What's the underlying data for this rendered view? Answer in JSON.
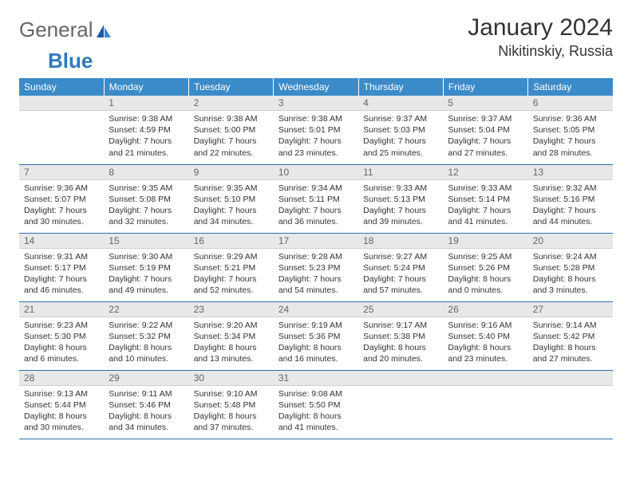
{
  "logo": {
    "part1": "General",
    "part2": "Blue"
  },
  "title": "January 2024",
  "location": "Nikitinskiy, Russia",
  "colors": {
    "header_bg": "#3b8bc9",
    "header_text": "#ffffff",
    "daynum_bg": "#e8e8e8",
    "daynum_text": "#666666",
    "row_divider": "#2f6fae",
    "logo_blue": "#2f79bd"
  },
  "weekdays": [
    "Sunday",
    "Monday",
    "Tuesday",
    "Wednesday",
    "Thursday",
    "Friday",
    "Saturday"
  ],
  "weeks": [
    [
      null,
      {
        "n": "1",
        "sr": "Sunrise: 9:38 AM",
        "ss": "Sunset: 4:59 PM",
        "d1": "Daylight: 7 hours",
        "d2": "and 21 minutes."
      },
      {
        "n": "2",
        "sr": "Sunrise: 9:38 AM",
        "ss": "Sunset: 5:00 PM",
        "d1": "Daylight: 7 hours",
        "d2": "and 22 minutes."
      },
      {
        "n": "3",
        "sr": "Sunrise: 9:38 AM",
        "ss": "Sunset: 5:01 PM",
        "d1": "Daylight: 7 hours",
        "d2": "and 23 minutes."
      },
      {
        "n": "4",
        "sr": "Sunrise: 9:37 AM",
        "ss": "Sunset: 5:03 PM",
        "d1": "Daylight: 7 hours",
        "d2": "and 25 minutes."
      },
      {
        "n": "5",
        "sr": "Sunrise: 9:37 AM",
        "ss": "Sunset: 5:04 PM",
        "d1": "Daylight: 7 hours",
        "d2": "and 27 minutes."
      },
      {
        "n": "6",
        "sr": "Sunrise: 9:36 AM",
        "ss": "Sunset: 5:05 PM",
        "d1": "Daylight: 7 hours",
        "d2": "and 28 minutes."
      }
    ],
    [
      {
        "n": "7",
        "sr": "Sunrise: 9:36 AM",
        "ss": "Sunset: 5:07 PM",
        "d1": "Daylight: 7 hours",
        "d2": "and 30 minutes."
      },
      {
        "n": "8",
        "sr": "Sunrise: 9:35 AM",
        "ss": "Sunset: 5:08 PM",
        "d1": "Daylight: 7 hours",
        "d2": "and 32 minutes."
      },
      {
        "n": "9",
        "sr": "Sunrise: 9:35 AM",
        "ss": "Sunset: 5:10 PM",
        "d1": "Daylight: 7 hours",
        "d2": "and 34 minutes."
      },
      {
        "n": "10",
        "sr": "Sunrise: 9:34 AM",
        "ss": "Sunset: 5:11 PM",
        "d1": "Daylight: 7 hours",
        "d2": "and 36 minutes."
      },
      {
        "n": "11",
        "sr": "Sunrise: 9:33 AM",
        "ss": "Sunset: 5:13 PM",
        "d1": "Daylight: 7 hours",
        "d2": "and 39 minutes."
      },
      {
        "n": "12",
        "sr": "Sunrise: 9:33 AM",
        "ss": "Sunset: 5:14 PM",
        "d1": "Daylight: 7 hours",
        "d2": "and 41 minutes."
      },
      {
        "n": "13",
        "sr": "Sunrise: 9:32 AM",
        "ss": "Sunset: 5:16 PM",
        "d1": "Daylight: 7 hours",
        "d2": "and 44 minutes."
      }
    ],
    [
      {
        "n": "14",
        "sr": "Sunrise: 9:31 AM",
        "ss": "Sunset: 5:17 PM",
        "d1": "Daylight: 7 hours",
        "d2": "and 46 minutes."
      },
      {
        "n": "15",
        "sr": "Sunrise: 9:30 AM",
        "ss": "Sunset: 5:19 PM",
        "d1": "Daylight: 7 hours",
        "d2": "and 49 minutes."
      },
      {
        "n": "16",
        "sr": "Sunrise: 9:29 AM",
        "ss": "Sunset: 5:21 PM",
        "d1": "Daylight: 7 hours",
        "d2": "and 52 minutes."
      },
      {
        "n": "17",
        "sr": "Sunrise: 9:28 AM",
        "ss": "Sunset: 5:23 PM",
        "d1": "Daylight: 7 hours",
        "d2": "and 54 minutes."
      },
      {
        "n": "18",
        "sr": "Sunrise: 9:27 AM",
        "ss": "Sunset: 5:24 PM",
        "d1": "Daylight: 7 hours",
        "d2": "and 57 minutes."
      },
      {
        "n": "19",
        "sr": "Sunrise: 9:25 AM",
        "ss": "Sunset: 5:26 PM",
        "d1": "Daylight: 8 hours",
        "d2": "and 0 minutes."
      },
      {
        "n": "20",
        "sr": "Sunrise: 9:24 AM",
        "ss": "Sunset: 5:28 PM",
        "d1": "Daylight: 8 hours",
        "d2": "and 3 minutes."
      }
    ],
    [
      {
        "n": "21",
        "sr": "Sunrise: 9:23 AM",
        "ss": "Sunset: 5:30 PM",
        "d1": "Daylight: 8 hours",
        "d2": "and 6 minutes."
      },
      {
        "n": "22",
        "sr": "Sunrise: 9:22 AM",
        "ss": "Sunset: 5:32 PM",
        "d1": "Daylight: 8 hours",
        "d2": "and 10 minutes."
      },
      {
        "n": "23",
        "sr": "Sunrise: 9:20 AM",
        "ss": "Sunset: 5:34 PM",
        "d1": "Daylight: 8 hours",
        "d2": "and 13 minutes."
      },
      {
        "n": "24",
        "sr": "Sunrise: 9:19 AM",
        "ss": "Sunset: 5:36 PM",
        "d1": "Daylight: 8 hours",
        "d2": "and 16 minutes."
      },
      {
        "n": "25",
        "sr": "Sunrise: 9:17 AM",
        "ss": "Sunset: 5:38 PM",
        "d1": "Daylight: 8 hours",
        "d2": "and 20 minutes."
      },
      {
        "n": "26",
        "sr": "Sunrise: 9:16 AM",
        "ss": "Sunset: 5:40 PM",
        "d1": "Daylight: 8 hours",
        "d2": "and 23 minutes."
      },
      {
        "n": "27",
        "sr": "Sunrise: 9:14 AM",
        "ss": "Sunset: 5:42 PM",
        "d1": "Daylight: 8 hours",
        "d2": "and 27 minutes."
      }
    ],
    [
      {
        "n": "28",
        "sr": "Sunrise: 9:13 AM",
        "ss": "Sunset: 5:44 PM",
        "d1": "Daylight: 8 hours",
        "d2": "and 30 minutes."
      },
      {
        "n": "29",
        "sr": "Sunrise: 9:11 AM",
        "ss": "Sunset: 5:46 PM",
        "d1": "Daylight: 8 hours",
        "d2": "and 34 minutes."
      },
      {
        "n": "30",
        "sr": "Sunrise: 9:10 AM",
        "ss": "Sunset: 5:48 PM",
        "d1": "Daylight: 8 hours",
        "d2": "and 37 minutes."
      },
      {
        "n": "31",
        "sr": "Sunrise: 9:08 AM",
        "ss": "Sunset: 5:50 PM",
        "d1": "Daylight: 8 hours",
        "d2": "and 41 minutes."
      },
      null,
      null,
      null
    ]
  ]
}
